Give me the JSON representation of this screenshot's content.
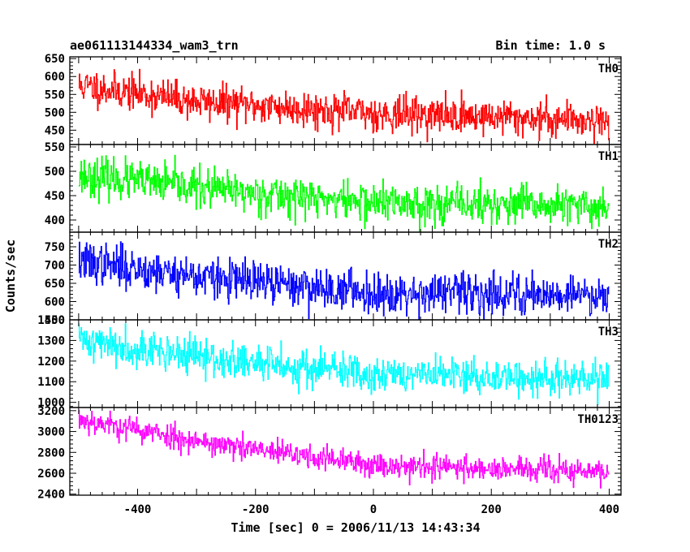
{
  "header": {
    "left": "ae061113144334_wam3_trn",
    "right": "Bin time: 1.0 s"
  },
  "chart_data": {
    "type": "line",
    "xlabel": "Time [sec] 0 = 2006/11/13 14:43:34",
    "ylabel": "Counts/sec",
    "xlim": [
      -515,
      420
    ],
    "xticks": [
      -400,
      -200,
      0,
      200,
      400
    ],
    "x_start": -500,
    "x_end": 400,
    "bin": 1.0,
    "panels": [
      {
        "name": "TH0",
        "color": "#ff0000",
        "ylim": [
          410,
          655
        ],
        "yticks": [
          450,
          500,
          550,
          600,
          650
        ],
        "trend": [
          [
            -500,
            575
          ],
          [
            -300,
            530
          ],
          [
            0,
            497
          ],
          [
            400,
            478
          ]
        ],
        "noise": 25,
        "seed": 11
      },
      {
        "name": "TH1",
        "color": "#00ff00",
        "ylim": [
          375,
          555
        ],
        "yticks": [
          400,
          450,
          500,
          550
        ],
        "trend": [
          [
            -500,
            492
          ],
          [
            -250,
            460
          ],
          [
            0,
            436
          ],
          [
            400,
            426
          ]
        ],
        "noise": 20,
        "seed": 23
      },
      {
        "name": "TH2",
        "color": "#0000ff",
        "ylim": [
          550,
          790
        ],
        "yticks": [
          550,
          600,
          650,
          700,
          750
        ],
        "trend": [
          [
            -500,
            710
          ],
          [
            -250,
            660
          ],
          [
            0,
            625
          ],
          [
            400,
            620
          ]
        ],
        "noise": 28,
        "seed": 37
      },
      {
        "name": "TH3",
        "color": "#00ffff",
        "ylim": [
          975,
          1400
        ],
        "yticks": [
          1000,
          1100,
          1200,
          1300,
          1400
        ],
        "trend": [
          [
            -500,
            1305
          ],
          [
            -250,
            1200
          ],
          [
            0,
            1140
          ],
          [
            400,
            1105
          ]
        ],
        "noise": 45,
        "seed": 41
      },
      {
        "name": "TH0123",
        "color": "#ff00ff",
        "ylim": [
          2390,
          3230
        ],
        "yticks": [
          2400,
          2600,
          2800,
          3000,
          3200
        ],
        "trend": [
          [
            -500,
            3120
          ],
          [
            -250,
            2860
          ],
          [
            0,
            2680
          ],
          [
            400,
            2610
          ]
        ],
        "noise": 60,
        "seed": 53
      }
    ]
  }
}
